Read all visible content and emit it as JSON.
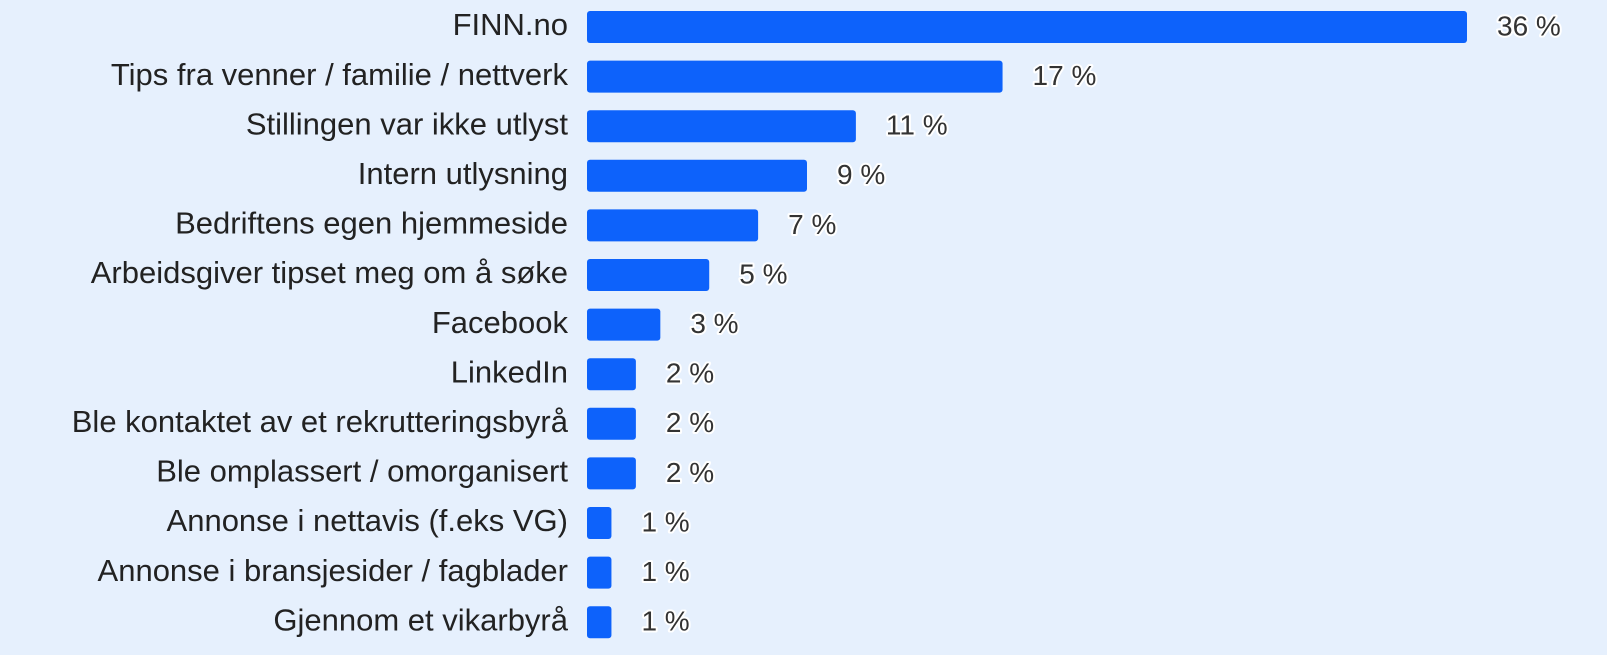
{
  "chart_data": {
    "type": "bar",
    "categories": [
      "FINN.no",
      "Tips fra venner / familie / nettverk",
      "Stillingen var ikke utlyst",
      "Intern utlysning",
      "Bedriftens egen hjemmeside",
      "Arbeidsgiver tipset meg om å søke",
      "Facebook",
      "LinkedIn",
      "Ble kontaktet av et rekrutteringsbyrå",
      "Ble omplassert / omorganisert",
      "Annonse i nettavis (f.eks VG)",
      "Annonse i bransjesider / fagblader",
      "Gjennom et vikarbyrå"
    ],
    "values": [
      36,
      17,
      11,
      9,
      7,
      5,
      3,
      2,
      2,
      2,
      1,
      1,
      1
    ],
    "value_labels": [
      "36 %",
      "17 %",
      "11 %",
      "9 %",
      "7 %",
      "5 %",
      "3 %",
      "2 %",
      "2 %",
      "2 %",
      "1 %",
      "1 %",
      "1 %"
    ],
    "color": "#0d62fb"
  }
}
